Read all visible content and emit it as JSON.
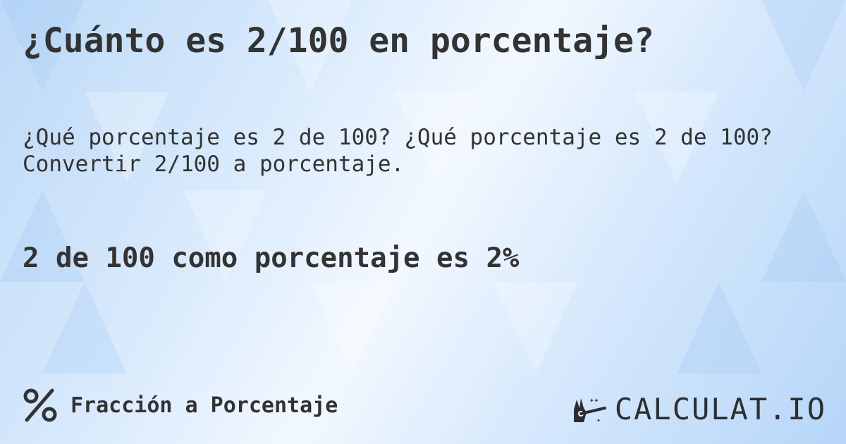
{
  "title": "¿Cuánto es 2/100 en porcentaje?",
  "description": "¿Qué porcentaje es 2 de 100? ¿Qué porcentaje es 2 de 100? Convertir 2/100 a porcentaje.",
  "result": "2 de 100 como porcentaje es 2%",
  "category": {
    "icon": "percent-icon",
    "label": "Fracción a Porcentaje"
  },
  "logo": {
    "icon": "magic-hand-wand-icon",
    "text": "CALCULAT.IO"
  },
  "colors": {
    "text": "#333333",
    "background_light": "#f2f8ff",
    "background_blue": "#b6d6f8"
  }
}
